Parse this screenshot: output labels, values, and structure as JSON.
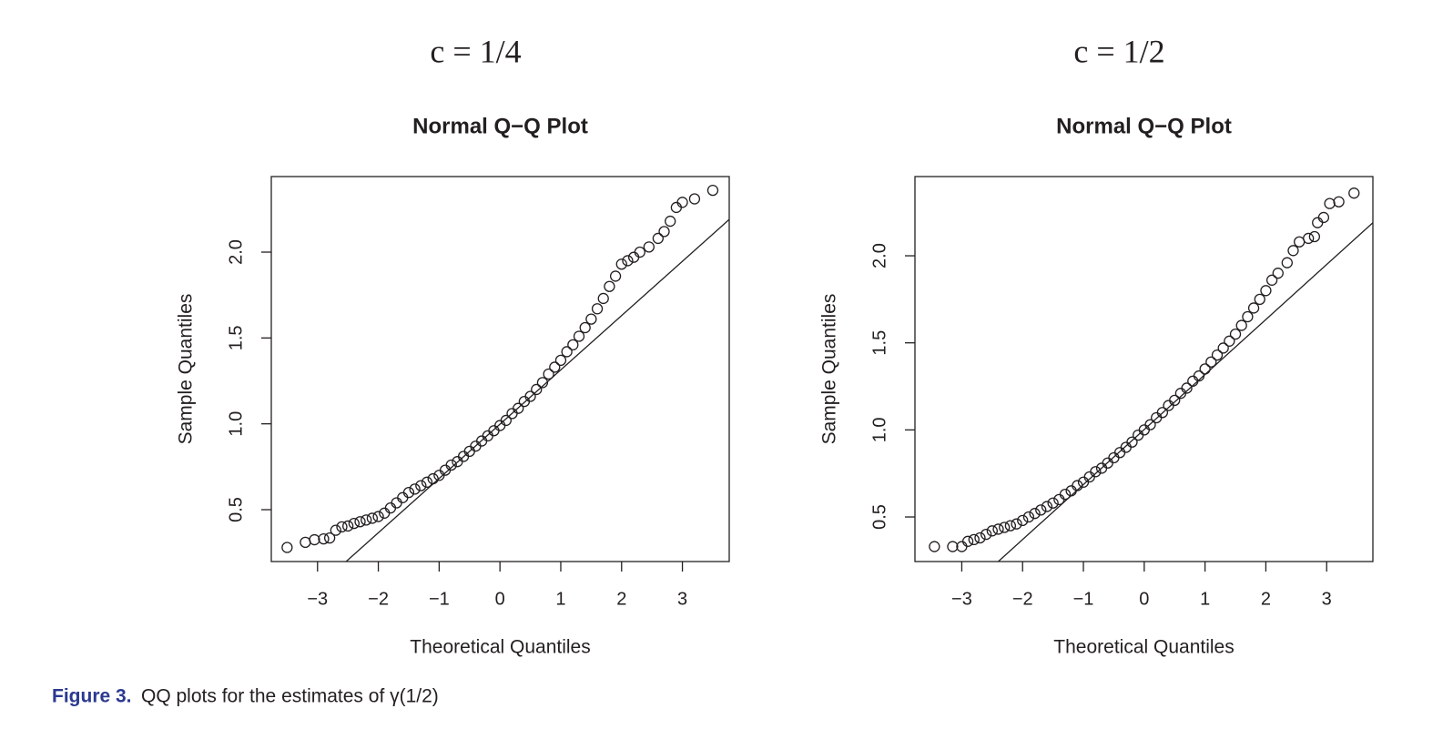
{
  "chart_data": [
    {
      "type": "scatter",
      "heading": "c = 1/4",
      "title": "Normal Q−Q Plot",
      "xlabel": "Theoretical Quantiles",
      "ylabel": "Sample Quantiles",
      "xlim": [
        -3.76,
        3.77
      ],
      "ylim": [
        0.198,
        2.44
      ],
      "xticks": [
        {
          "value": -3,
          "label": "−3"
        },
        {
          "value": -2,
          "label": "−2"
        },
        {
          "value": -1,
          "label": "−1"
        },
        0,
        1,
        2,
        3
      ],
      "yticks": [
        0.5,
        {
          "value": 1,
          "label": "1.0"
        },
        1.5,
        {
          "value": 2,
          "label": "2.0"
        }
      ],
      "color": "#231f20",
      "x": [
        -3.5,
        -3.2,
        -3.05,
        -2.9,
        -2.8,
        -2.7,
        -2.6,
        -2.5,
        -2.4,
        -2.3,
        -2.2,
        -2.1,
        -2.0,
        -1.9,
        -1.8,
        -1.7,
        -1.6,
        -1.5,
        -1.4,
        -1.3,
        -1.2,
        -1.1,
        -1.0,
        -0.9,
        -0.8,
        -0.7,
        -0.6,
        -0.5,
        -0.4,
        -0.3,
        -0.2,
        -0.1,
        0,
        0.1,
        0.2,
        0.3,
        0.4,
        0.5,
        0.6,
        0.7,
        0.8,
        0.9,
        1.0,
        1.1,
        1.2,
        1.3,
        1.4,
        1.5,
        1.6,
        1.7,
        1.8,
        1.9,
        2.0,
        2.1,
        2.2,
        2.3,
        2.45,
        2.6,
        2.7,
        2.8,
        2.9,
        3.0,
        3.2,
        3.5
      ],
      "y": [
        0.28,
        0.31,
        0.325,
        0.33,
        0.335,
        0.38,
        0.4,
        0.405,
        0.42,
        0.43,
        0.44,
        0.45,
        0.46,
        0.48,
        0.51,
        0.54,
        0.57,
        0.6,
        0.62,
        0.64,
        0.66,
        0.68,
        0.7,
        0.73,
        0.76,
        0.78,
        0.81,
        0.84,
        0.87,
        0.9,
        0.93,
        0.96,
        0.99,
        1.02,
        1.06,
        1.09,
        1.13,
        1.16,
        1.2,
        1.24,
        1.29,
        1.33,
        1.37,
        1.42,
        1.46,
        1.51,
        1.56,
        1.61,
        1.67,
        1.73,
        1.8,
        1.86,
        1.93,
        1.95,
        1.97,
        2.0,
        2.03,
        2.08,
        2.12,
        2.18,
        2.26,
        2.29,
        2.31,
        2.36
      ],
      "qq_line": {
        "x": [
          -2.53,
          3.77
        ],
        "y": [
          0.198,
          2.19
        ]
      }
    },
    {
      "type": "scatter",
      "heading": "c = 1/2",
      "title": "Normal Q−Q Plot",
      "xlabel": "Theoretical Quantiles",
      "ylabel": "Sample Quantiles",
      "xlim": [
        -3.77,
        3.76
      ],
      "ylim": [
        0.244,
        2.455
      ],
      "xticks": [
        {
          "value": -3,
          "label": "−3"
        },
        {
          "value": -2,
          "label": "−2"
        },
        {
          "value": -1,
          "label": "−1"
        },
        0,
        1,
        2,
        3
      ],
      "yticks": [
        0.5,
        {
          "value": 1,
          "label": "1.0"
        },
        1.5,
        {
          "value": 2,
          "label": "2.0"
        }
      ],
      "color": "#231f20",
      "x": [
        -3.45,
        -3.15,
        -3.0,
        -2.9,
        -2.8,
        -2.7,
        -2.6,
        -2.5,
        -2.4,
        -2.3,
        -2.2,
        -2.1,
        -2.0,
        -1.9,
        -1.8,
        -1.7,
        -1.6,
        -1.5,
        -1.4,
        -1.3,
        -1.2,
        -1.1,
        -1.0,
        -0.9,
        -0.8,
        -0.7,
        -0.6,
        -0.5,
        -0.4,
        -0.3,
        -0.2,
        -0.1,
        0,
        0.1,
        0.2,
        0.3,
        0.4,
        0.5,
        0.6,
        0.7,
        0.8,
        0.9,
        1.0,
        1.1,
        1.2,
        1.3,
        1.4,
        1.5,
        1.6,
        1.7,
        1.8,
        1.9,
        2.0,
        2.1,
        2.2,
        2.35,
        2.45,
        2.55,
        2.7,
        2.8,
        2.85,
        2.95,
        3.05,
        3.2,
        3.45
      ],
      "y": [
        0.33,
        0.33,
        0.33,
        0.36,
        0.37,
        0.38,
        0.4,
        0.42,
        0.43,
        0.44,
        0.45,
        0.46,
        0.48,
        0.5,
        0.52,
        0.54,
        0.56,
        0.58,
        0.6,
        0.63,
        0.65,
        0.68,
        0.7,
        0.73,
        0.76,
        0.78,
        0.81,
        0.84,
        0.87,
        0.9,
        0.93,
        0.97,
        1.0,
        1.03,
        1.07,
        1.1,
        1.14,
        1.17,
        1.21,
        1.24,
        1.28,
        1.31,
        1.35,
        1.39,
        1.43,
        1.47,
        1.51,
        1.55,
        1.6,
        1.65,
        1.7,
        1.75,
        1.8,
        1.86,
        1.9,
        1.96,
        2.03,
        2.08,
        2.1,
        2.11,
        2.19,
        2.22,
        2.3,
        2.31,
        2.36
      ],
      "qq_line": {
        "x": [
          -2.4,
          3.76
        ],
        "y": [
          0.244,
          2.19
        ]
      }
    }
  ],
  "caption": {
    "label": "Figure 3.",
    "text": "QQ plots for the estimates of γ(1/2)"
  }
}
